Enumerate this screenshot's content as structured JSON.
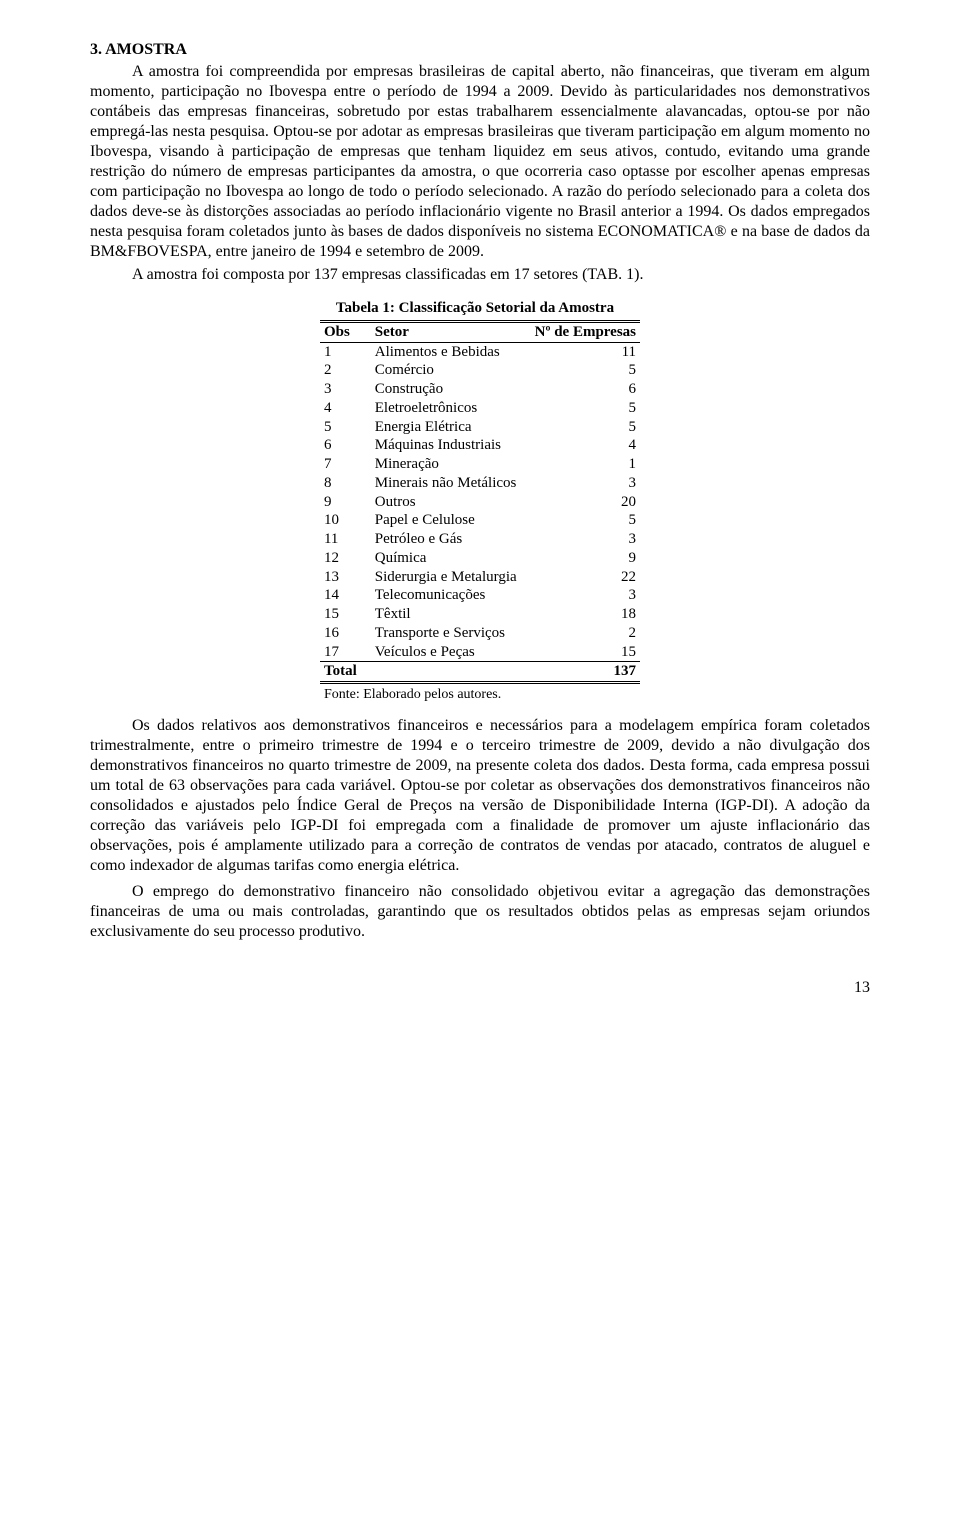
{
  "section": {
    "heading": "3.  AMOSTRA",
    "p1": "A amostra foi compreendida por empresas brasileiras de capital aberto, não financeiras, que tiveram em algum momento, participação no Ibovespa entre o período de 1994 a 2009. Devido às particularidades nos demonstrativos contábeis das empresas financeiras, sobretudo por estas trabalharem essencialmente alavancadas, optou-se por não empregá-las nesta pesquisa. Optou-se por adotar as empresas brasileiras que tiveram participação em algum momento no Ibovespa, visando à participação de empresas que tenham liquidez em seus ativos, contudo, evitando uma grande restrição do número de empresas participantes da amostra, o que ocorreria caso optasse por escolher apenas empresas com participação no Ibovespa ao longo de todo o período selecionado. A razão do período selecionado para a coleta dos dados deve-se às distorções associadas ao período inflacionário vigente no Brasil anterior a 1994. Os dados empregados nesta pesquisa foram coletados junto às bases de dados disponíveis no sistema ECONOMATICA® e na base de dados da BM&FBOVESPA, entre janeiro de 1994 e setembro de 2009.",
    "p2": "A amostra foi composta por 137 empresas classificadas em 17 setores (TAB. 1).",
    "p3": "Os dados relativos aos demonstrativos financeiros e necessários para a modelagem empírica foram coletados trimestralmente, entre o primeiro trimestre de 1994 e o terceiro trimestre de 2009, devido a não divulgação dos demonstrativos financeiros no quarto trimestre de 2009, na presente coleta dos dados. Desta forma, cada empresa possui um total de 63 observações para cada variável. Optou-se por coletar as observações dos demonstrativos financeiros não consolidados e ajustados pelo Índice Geral de Preços na versão de Disponibilidade Interna (IGP-DI). A adoção da correção das variáveis pelo IGP-DI foi empregada com a finalidade de promover um ajuste inflacionário das observações, pois é amplamente utilizado para a correção de contratos de vendas por atacado, contratos de aluguel e como indexador de algumas tarifas como energia elétrica.",
    "p4": "O emprego do demonstrativo financeiro não consolidado objetivou evitar a agregação das demonstrações financeiras de uma ou mais controladas, garantindo que os resultados obtidos pelas as empresas sejam oriundos exclusivamente do seu processo produtivo."
  },
  "table": {
    "title": "Tabela 1: Classificação Setorial da Amostra",
    "col_obs": "Obs",
    "col_setor": "Setor",
    "col_n": "Nº de Empresas",
    "rows": [
      {
        "obs": "1",
        "setor": "Alimentos e Bebidas",
        "n": "11"
      },
      {
        "obs": "2",
        "setor": "Comércio",
        "n": "5"
      },
      {
        "obs": "3",
        "setor": "Construção",
        "n": "6"
      },
      {
        "obs": "4",
        "setor": "Eletroeletrônicos",
        "n": "5"
      },
      {
        "obs": "5",
        "setor": "Energia Elétrica",
        "n": "5"
      },
      {
        "obs": "6",
        "setor": "Máquinas Industriais",
        "n": "4"
      },
      {
        "obs": "7",
        "setor": "Mineração",
        "n": "1"
      },
      {
        "obs": "8",
        "setor": "Minerais não Metálicos",
        "n": "3"
      },
      {
        "obs": "9",
        "setor": "Outros",
        "n": "20"
      },
      {
        "obs": "10",
        "setor": "Papel e Celulose",
        "n": "5"
      },
      {
        "obs": "11",
        "setor": "Petróleo e Gás",
        "n": "3"
      },
      {
        "obs": "12",
        "setor": "Química",
        "n": "9"
      },
      {
        "obs": "13",
        "setor": "Siderurgia e Metalurgia",
        "n": "22"
      },
      {
        "obs": "14",
        "setor": "Telecomunicações",
        "n": "3"
      },
      {
        "obs": "15",
        "setor": "Têxtil",
        "n": "18"
      },
      {
        "obs": "16",
        "setor": "Transporte e Serviços",
        "n": "2"
      },
      {
        "obs": "17",
        "setor": "Veículos e Peças",
        "n": "15"
      }
    ],
    "total_label": "Total",
    "total_value": "137",
    "footnote": "Fonte: Elaborado pelos autores."
  },
  "page_number": "13"
}
